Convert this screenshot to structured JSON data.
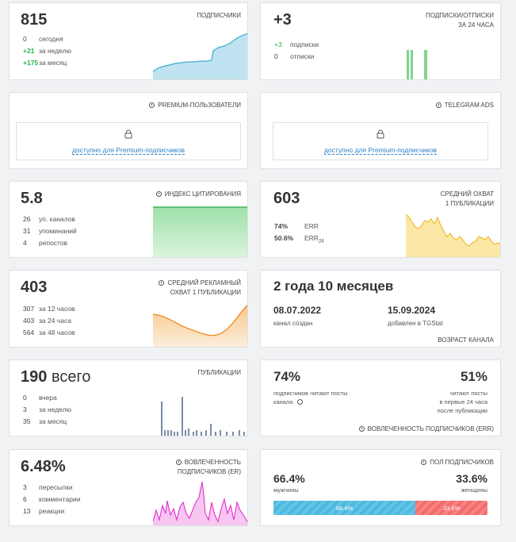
{
  "subscribers": {
    "value": "815",
    "title": "ПОДПИСЧИКИ",
    "rows": [
      {
        "n": "0",
        "label": "сегодня"
      },
      {
        "n": "+21",
        "label": "за неделю"
      },
      {
        "n": "+175",
        "label": "за месяц"
      }
    ]
  },
  "subs_unsubs": {
    "value": "+3",
    "title_l1": "ПОДПИСКИ/ОТПИСКИ",
    "title_l2": "ЗА 24 ЧАСА",
    "rows": [
      {
        "n": "+3",
        "label": "подписки"
      },
      {
        "n": "0",
        "label": "отписки"
      }
    ]
  },
  "premium_users": {
    "title": "PREMIUM-ПОЛЬЗОВАТЕЛИ",
    "link": "доступно для Premium-подписчиков",
    "icon": "lock-icon"
  },
  "telegram_ads": {
    "title": "TELEGRAM ADS",
    "link": "доступно для Premium-подписчиков",
    "icon": "lock-icon"
  },
  "citation": {
    "value": "5.8",
    "title": "ИНДЕКС ЦИТИРОВАНИЯ",
    "rows": [
      {
        "n": "26",
        "label": "уп. каналов"
      },
      {
        "n": "31",
        "label": "упоминаний"
      },
      {
        "n": "4",
        "label": "репостов"
      }
    ]
  },
  "avg_reach": {
    "value": "603",
    "title_l1": "СРЕДНИЙ ОХВАТ",
    "title_l2": "1 ПУБЛИКАЦИИ",
    "err": {
      "n": "74%",
      "label": "ERR"
    },
    "err24": {
      "n": "50.6%",
      "label": "ERR",
      "sub": "24"
    }
  },
  "ad_reach": {
    "value": "403",
    "title_l1": "СРЕДНИЙ РЕКЛАМНЫЙ",
    "title_l2": "ОХВАТ 1 ПУБЛИКАЦИИ",
    "rows": [
      {
        "n": "307",
        "label": "за 12 часов"
      },
      {
        "n": "403",
        "label": "за 24 часа"
      },
      {
        "n": "564",
        "label": "за 48 часов"
      }
    ]
  },
  "age": {
    "value": "2 года 10 месяцев",
    "created_date": "08.07.2022",
    "created_label": "канал создан",
    "added_date": "15.09.2024",
    "added_label": "добавлен в TGStat",
    "title": "ВОЗРАСТ КАНАЛА"
  },
  "publications": {
    "value": "190",
    "unit": "всего",
    "title": "ПУБЛИКАЦИИ",
    "rows": [
      {
        "n": "0",
        "label": "вчера"
      },
      {
        "n": "3",
        "label": "за неделю"
      },
      {
        "n": "35",
        "label": "за месяц"
      }
    ]
  },
  "engagement": {
    "left_pct": "74%",
    "left_l1": "подписчиков читают посты",
    "left_l2": "канала",
    "right_pct": "51%",
    "right_l1": "читают посты",
    "right_l2": "в первые 24 часа",
    "right_l3": "после публикации",
    "title": "ВОВЛЕЧЕННОСТЬ ПОДПИСЧИКОВ (ERR)"
  },
  "er": {
    "value": "6.48%",
    "title_l1": "ВОВЛЕЧЕННОСТЬ",
    "title_l2": "ПОДПИСЧИКОВ (ER)",
    "rows": [
      {
        "n": "3",
        "label": "пересылки"
      },
      {
        "n": "6",
        "label": "комментарии"
      },
      {
        "n": "13",
        "label": "реакции"
      }
    ]
  },
  "gender": {
    "title": "ПОЛ ПОДПИСЧИКОВ",
    "male_pct": "66.4%",
    "male_label": "мужчины",
    "female_pct": "33.6%",
    "female_label": "женщины",
    "male_share": 66.4,
    "bar_male": "66.4%",
    "bar_female": "33.6%"
  },
  "colors": {
    "accent_green": "#29b44c",
    "link": "#2a80c8",
    "male": "#4cb8de",
    "female": "#f36b6b"
  }
}
